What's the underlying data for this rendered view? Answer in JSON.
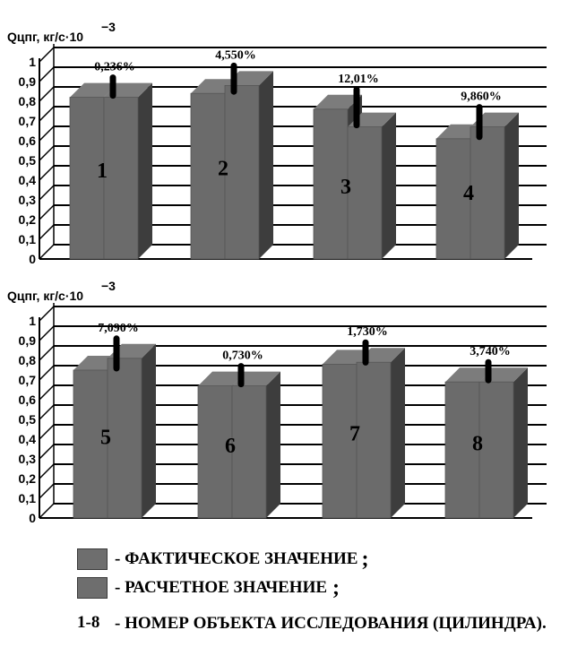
{
  "chart_data": [
    {
      "type": "bar",
      "ylabel": "Qцпг, кг/с·10",
      "ylabel_exp": "−3",
      "ylim": [
        0,
        1
      ],
      "yticks": [
        "0",
        "0,1",
        "0,2",
        "0,3",
        "0,4",
        "0,5",
        "0,6",
        "0,7",
        "0,8",
        "0,9",
        "1"
      ],
      "categories": [
        "1",
        "2",
        "3",
        "4"
      ],
      "series": [
        {
          "name": "ФАКТИЧЕСКОЕ ЗНАЧЕНИЕ",
          "values": [
            0.82,
            0.84,
            0.76,
            0.61
          ]
        },
        {
          "name": "РАСЧЕТНОЕ ЗНАЧЕНИЕ",
          "values": [
            0.82,
            0.88,
            0.67,
            0.67
          ]
        }
      ],
      "errors": [
        "0,236%",
        "4,550%",
        "12,01%",
        "9,860%"
      ],
      "grid": true,
      "colors": {
        "bar_front": "#6b6b6b",
        "bar_side": "#3d3d3d",
        "bar_top": "#7c7c7c",
        "error_line": "#000000"
      }
    },
    {
      "type": "bar",
      "ylabel": "Qцпг, кг/с·10",
      "ylabel_exp": "−3",
      "ylim": [
        0,
        1
      ],
      "yticks": [
        "0",
        "0,1",
        "0,2",
        "0,3",
        "0,4",
        "0,5",
        "0,6",
        "0,7",
        "0,8",
        "0,9",
        "1"
      ],
      "categories": [
        "5",
        "6",
        "7",
        "8"
      ],
      "series": [
        {
          "name": "ФАКТИЧЕСКОЕ ЗНАЧЕНИЕ",
          "values": [
            0.75,
            0.67,
            0.78,
            0.69
          ]
        },
        {
          "name": "РАСЧЕТНОЕ ЗНАЧЕНИЕ",
          "values": [
            0.81,
            0.67,
            0.79,
            0.69
          ]
        }
      ],
      "errors": [
        "7,090%",
        "0,730%",
        "1,730%",
        "3,740%"
      ],
      "grid": true,
      "colors": {
        "bar_front": "#6b6b6b",
        "bar_side": "#3d3d3d",
        "bar_top": "#7c7c7c",
        "error_line": "#000000"
      }
    }
  ],
  "legend": {
    "actual_label": "- ФАКТИЧЕСКОЕ ЗНАЧЕНИЕ",
    "actual_suffix": ";",
    "calc_label": "- РАСЧЕТНОЕ ЗНАЧЕНИЕ",
    "calc_suffix": ";",
    "range_label": "1-8",
    "range_text": "- НОМЕР ОБЪЕКТА ИССЛЕДОВАНИЯ (ЦИЛИНДРА)."
  }
}
